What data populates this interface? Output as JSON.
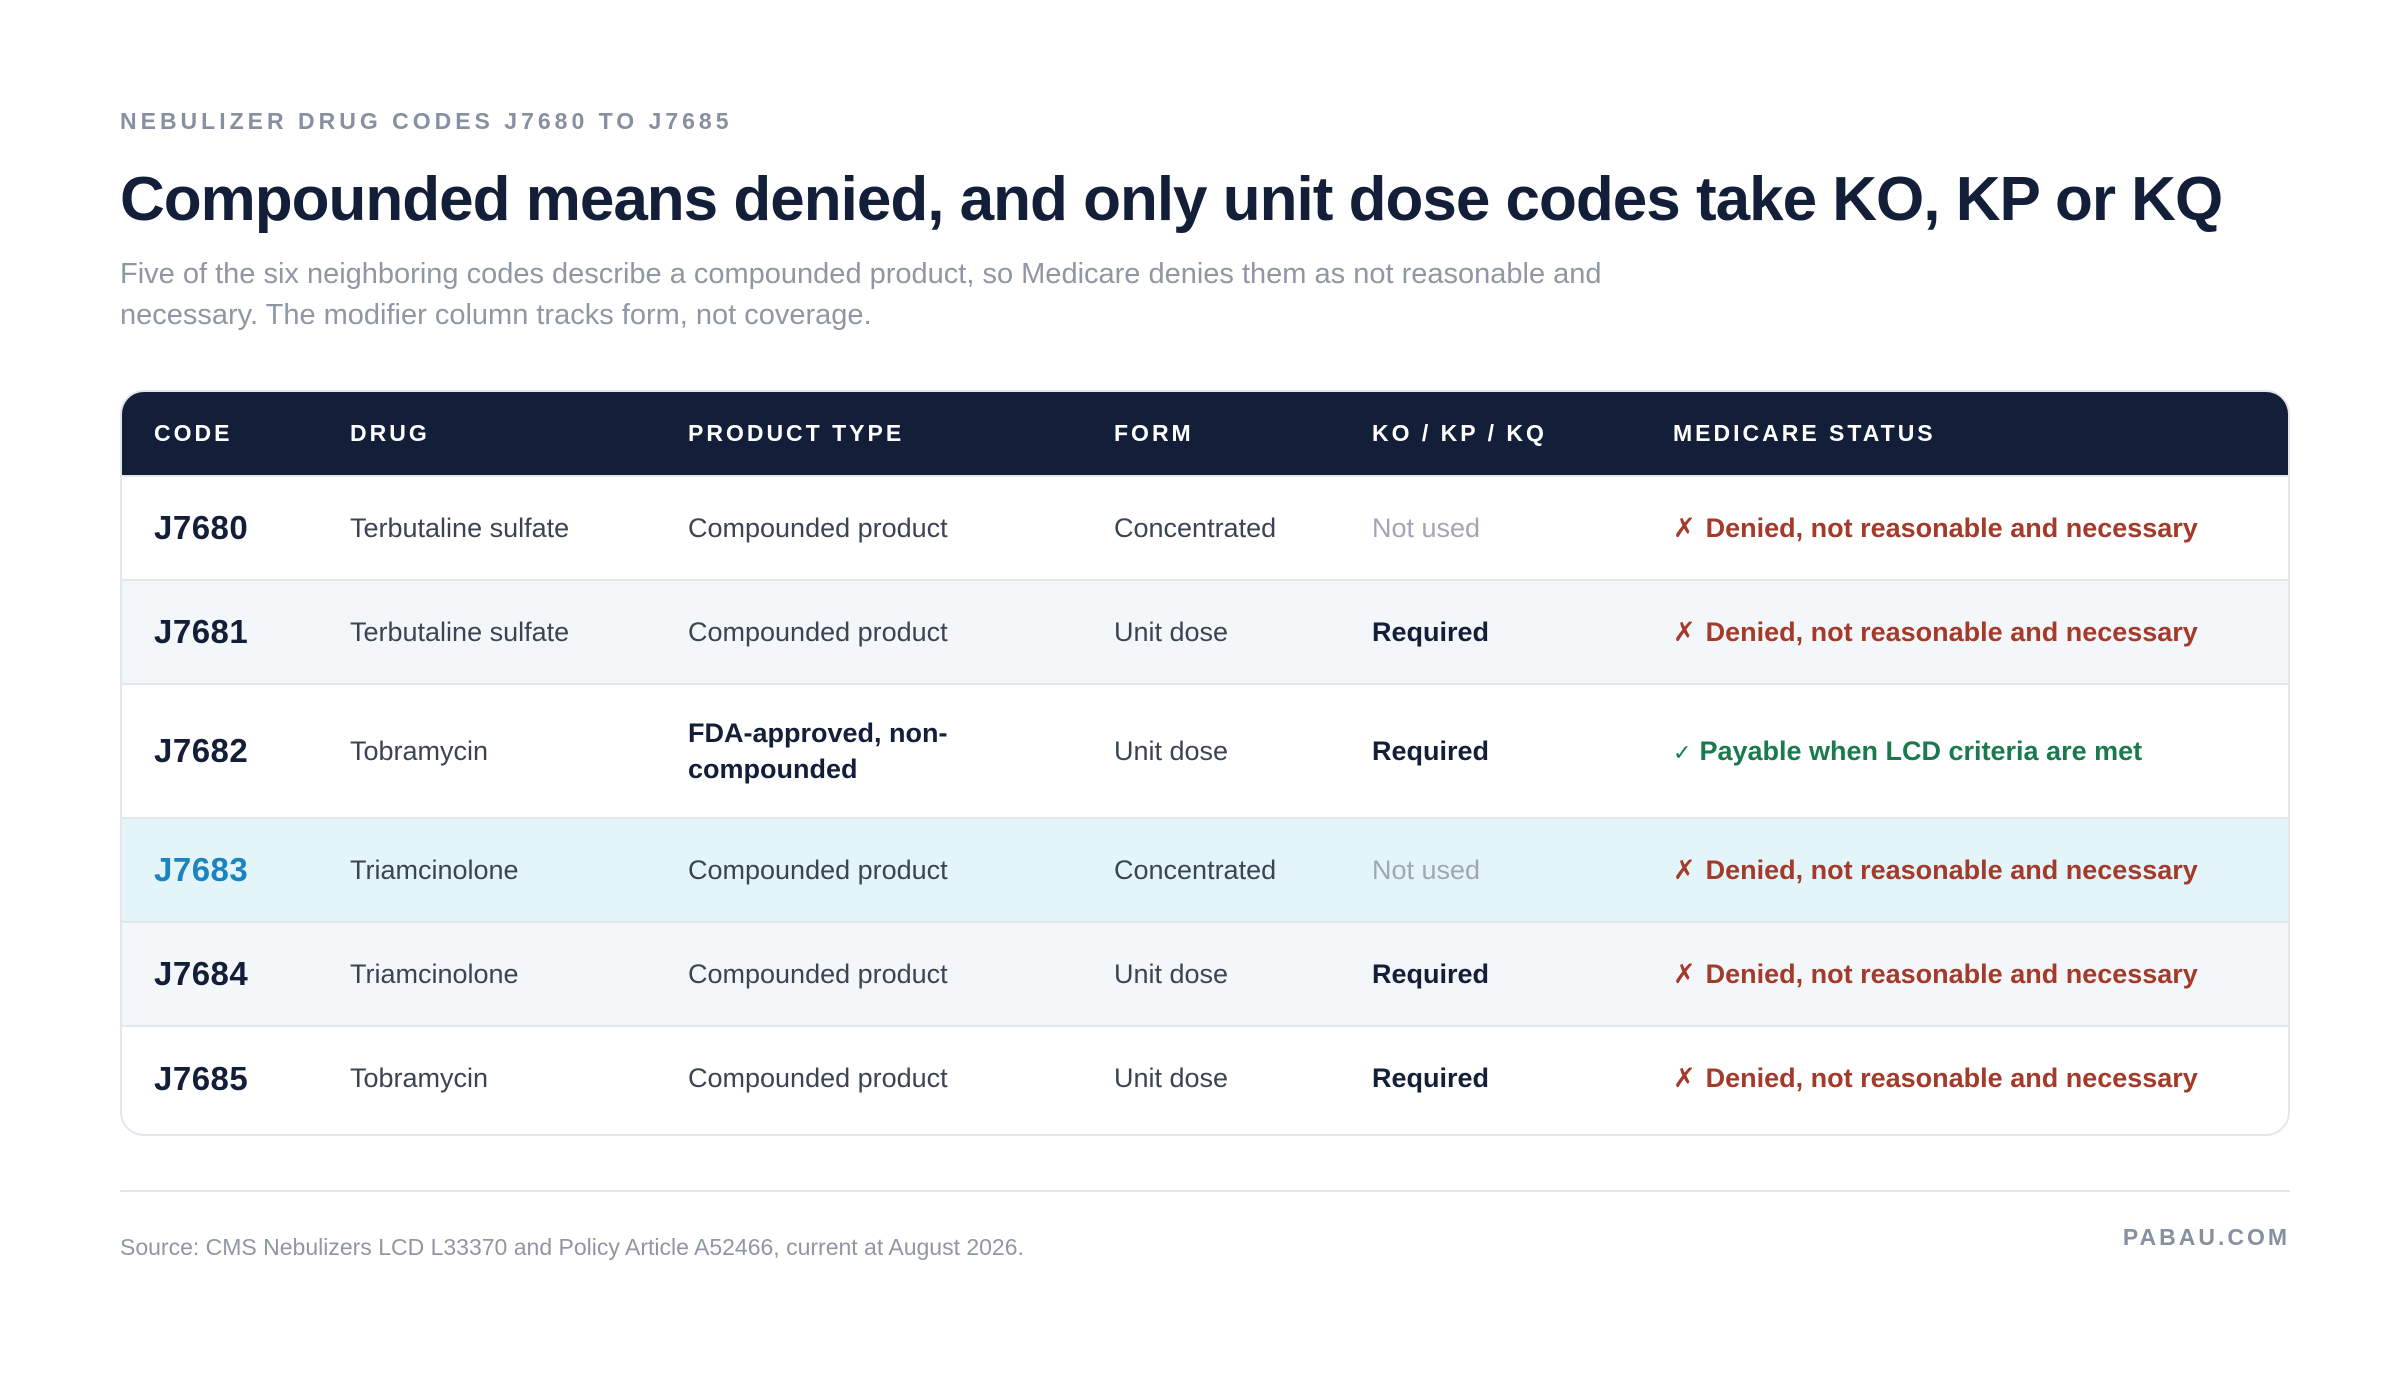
{
  "header": {
    "eyebrow": "NEBULIZER DRUG CODES J7680 TO J7685",
    "title": "Compounded means denied, and only unit dose codes take KO, KP or KQ",
    "subtitle": "Five of the six neighboring codes describe a compounded product, so Medicare denies them as not reasonable and necessary. The modifier column tracks form, not coverage."
  },
  "table": {
    "columns": [
      "CODE",
      "DRUG",
      "PRODUCT TYPE",
      "FORM",
      "KO / KP / KQ",
      "MEDICARE STATUS"
    ],
    "rows": [
      {
        "code": "J7680",
        "drug": "Terbutaline sulfate",
        "product_type": "Compounded product",
        "form": "Concentrated",
        "modifier": "Not used",
        "status": "Denied, not reasonable and necessary",
        "status_glyph": "✗"
      },
      {
        "code": "J7681",
        "drug": "Terbutaline sulfate",
        "product_type": "Compounded product",
        "form": "Unit dose",
        "modifier": "Required",
        "status": "Denied, not reasonable and necessary",
        "status_glyph": "✗"
      },
      {
        "code": "J7682",
        "drug": "Tobramycin",
        "product_type": "FDA-approved, non-compounded",
        "form": "Unit dose",
        "modifier": "Required",
        "status": "Payable when LCD criteria are met",
        "status_glyph": "✓"
      },
      {
        "code": "J7683",
        "drug": "Triamcinolone",
        "product_type": "Compounded product",
        "form": "Concentrated",
        "modifier": "Not used",
        "status": "Denied, not reasonable and necessary",
        "status_glyph": "✗"
      },
      {
        "code": "J7684",
        "drug": "Triamcinolone",
        "product_type": "Compounded product",
        "form": "Unit dose",
        "modifier": "Required",
        "status": "Denied, not reasonable and necessary",
        "status_glyph": "✗"
      },
      {
        "code": "J7685",
        "drug": "Tobramycin",
        "product_type": "Compounded product",
        "form": "Unit dose",
        "modifier": "Required",
        "status": "Denied, not reasonable and necessary",
        "status_glyph": "✗"
      }
    ]
  },
  "footer": {
    "source": "Source: CMS Nebulizers LCD L33370 and Policy Article A52466, current at August 2026.",
    "brand": "PABAU.COM"
  },
  "colors": {
    "header_bg": "#131f38",
    "denied": "#a33a2a",
    "payable": "#1a7a4e",
    "highlight_row": "#e4f5fa",
    "link_code": "#1a84c2"
  }
}
